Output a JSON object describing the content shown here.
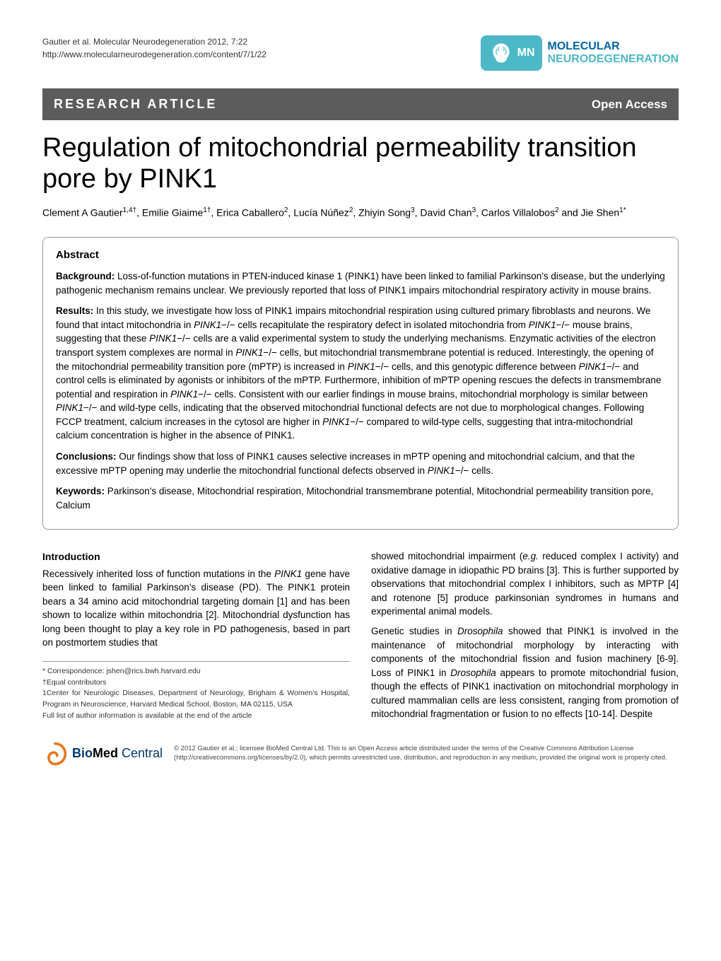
{
  "header": {
    "citation_line1": "Gautier et al. Molecular Neurodegeneration 2012, 7:22",
    "citation_line2": "http://www.molecularneurodegeneration.com/content/7/1/22",
    "journal_word1": "MOLECULAR",
    "journal_word2": "NEURODEGENERATION",
    "logo_letters": "MN",
    "logo_bg": "#4db8c8",
    "word1_color": "#0066a4",
    "word2_color": "#4db8c8"
  },
  "banner": {
    "left": "RESEARCH ARTICLE",
    "right": "Open Access",
    "bg": "#5c5c5c",
    "fg": "#ffffff"
  },
  "title": "Regulation of mitochondrial permeability transition pore by PINK1",
  "authors_html": "Clement A Gautier<sup>1,4†</sup>, Emilie Giaime<sup>1†</sup>, Erica Caballero<sup>2</sup>, Lucía Núñez<sup>2</sup>, Zhiyin Song<sup>3</sup>, David Chan<sup>3</sup>, Carlos Villalobos<sup>2</sup> and Jie Shen<sup>1*</sup>",
  "abstract": {
    "heading": "Abstract",
    "background_label": "Background:",
    "background_text": " Loss-of-function mutations in PTEN-induced kinase 1 (PINK1) have been linked to familial Parkinson's disease, but the underlying pathogenic mechanism remains unclear. We previously reported that loss of PINK1 impairs mitochondrial respiratory activity in mouse brains.",
    "results_label": "Results:",
    "results_text": " In this study, we investigate how loss of PINK1 impairs mitochondrial respiration using cultured primary fibroblasts and neurons. We found that intact mitochondria in PINK1−/− cells recapitulate the respiratory defect in isolated mitochondria from PINK1−/− mouse brains, suggesting that these PINK1−/− cells are a valid experimental system to study the underlying mechanisms. Enzymatic activities of the electron transport system complexes are normal in PINK1−/− cells, but mitochondrial transmembrane potential is reduced. Interestingly, the opening of the mitochondrial permeability transition pore (mPTP) is increased in PINK1−/− cells, and this genotypic difference between PINK1−/− and control cells is eliminated by agonists or inhibitors of the mPTP. Furthermore, inhibition of mPTP opening rescues the defects in transmembrane potential and respiration in PINK1−/− cells. Consistent with our earlier findings in mouse brains, mitochondrial morphology is similar between PINK1−/− and wild-type cells, indicating that the observed mitochondrial functional defects are not due to morphological changes. Following FCCP treatment, calcium increases in the cytosol are higher in PINK1−/− compared to wild-type cells, suggesting that intra-mitochondrial calcium concentration is higher in the absence of PINK1.",
    "conclusions_label": "Conclusions:",
    "conclusions_text": " Our findings show that loss of PINK1 causes selective increases in mPTP opening and mitochondrial calcium, and that the excessive mPTP opening may underlie the mitochondrial functional defects observed in PINK1−/− cells.",
    "keywords_label": "Keywords:",
    "keywords_text": " Parkinson's disease, Mitochondrial respiration, Mitochondrial transmembrane potential, Mitochondrial permeability transition pore, Calcium"
  },
  "intro": {
    "heading": "Introduction",
    "col1_p1_a": "Recessively inherited loss of function mutations in the ",
    "col1_p1_b_ital": "PINK1",
    "col1_p1_c": " gene have been linked to familial Parkinson's disease (PD). The PINK1 protein bears a 34 amino acid mitochondrial targeting domain [1] and has been shown to localize within mitochondria [2]. Mitochondrial dysfunction has long been thought to play a key role in PD pathogenesis, based in part on postmortem studies that",
    "col2_p1_a": "showed mitochondrial impairment (",
    "col2_p1_b_ital": "e.g.",
    "col2_p1_c": " reduced complex I activity) and oxidative damage in idiopathic PD brains [3]. This is further supported by observations that mitochondrial complex I inhibitors, such as MPTP [4] and rotenone [5] produce parkinsonian syndromes in humans and experimental animal models.",
    "col2_p2_a": "Genetic studies in ",
    "col2_p2_b_ital": "Drosophila",
    "col2_p2_c": " showed that PINK1 is involved in the maintenance of mitochondrial morphology by interacting with components of the mitochondrial fission and fusion machinery [6-9]. Loss of PINK1 in ",
    "col2_p2_d_ital": "Drosophila",
    "col2_p2_e": " appears to promote mitochondrial fusion, though the effects of PINK1 inactivation on mitochondrial morphology in cultured mammalian cells are less consistent, ranging from promotion of mitochondrial fragmentation or fusion to no effects [10-14]. Despite"
  },
  "correspondence": {
    "line1": "* Correspondence: jshen@rics.bwh.harvard.edu",
    "line2": "†Equal contributors",
    "line3": "1Center for Neurologic Diseases, Department of Neurology, Brigham & Women's Hospital, Program in Neuroscience, Harvard Medical School, Boston, MA 02115, USA",
    "line4": "Full list of author information is available at the end of the article"
  },
  "footer": {
    "bmc_bio": "Bio",
    "bmc_med": "Med",
    "bmc_central": " Central",
    "license": "© 2012 Gautier et al.; licensee BioMed Central Ltd. This is an Open Access article distributed under the terms of the Creative Commons Attribution License (http://creativecommons.org/licenses/by/2.0), which permits unrestricted use, distribution, and reproduction in any medium, provided the original work is properly cited.",
    "swirl_color": "#e87722",
    "bio_color": "#00376f"
  },
  "colors": {
    "page_bg": "#ffffff",
    "text": "#000000",
    "border": "#999999"
  }
}
